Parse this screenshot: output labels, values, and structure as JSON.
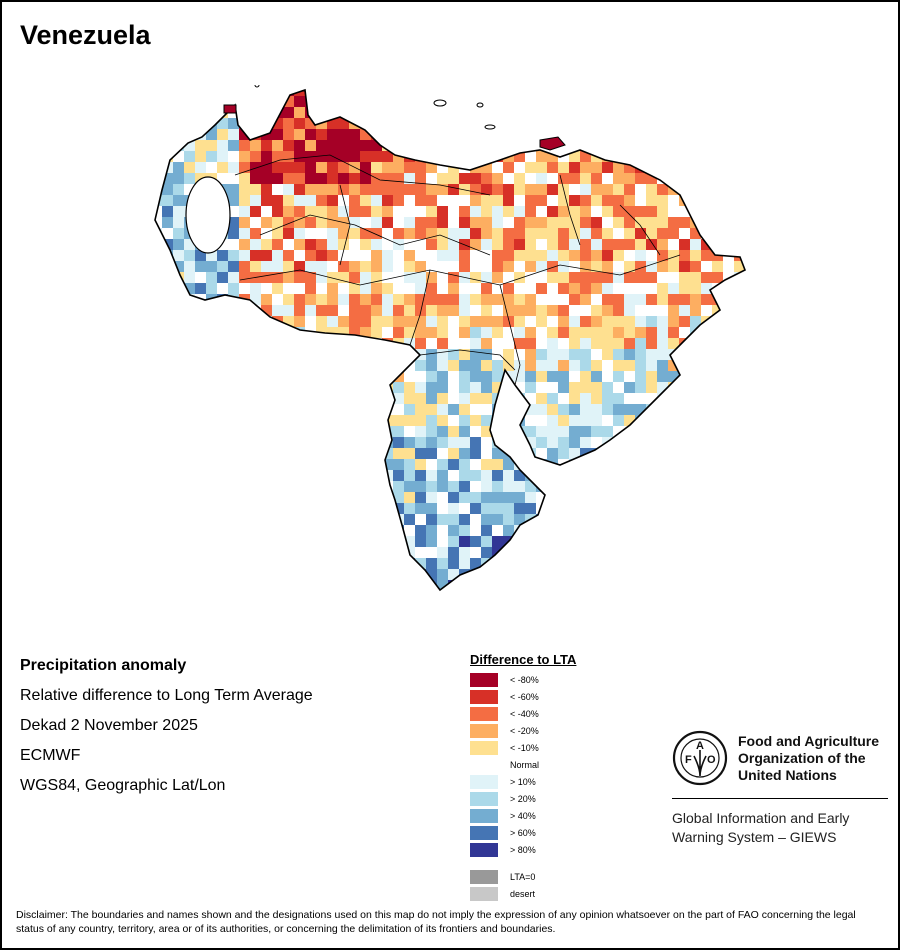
{
  "title": "Venezuela",
  "info": {
    "heading": "Precipitation anomaly",
    "subtitle": "Relative difference to Long Term Average",
    "period": "Dekad 2 November 2025",
    "source": "ECMWF",
    "projection": "WGS84, Geographic Lat/Lon"
  },
  "legend": {
    "title": "Difference to LTA",
    "items": [
      {
        "label": "< -80%",
        "color": "#a50026"
      },
      {
        "label": "< -60%",
        "color": "#d73027"
      },
      {
        "label": "< -40%",
        "color": "#f46d43"
      },
      {
        "label": "< -20%",
        "color": "#fdae61"
      },
      {
        "label": "< -10%",
        "color": "#fee090"
      },
      {
        "label": "Normal",
        "color": "#ffffff"
      },
      {
        "label": "> 10%",
        "color": "#e0f3f8"
      },
      {
        "label": "> 20%",
        "color": "#abd9e9"
      },
      {
        "label": "> 40%",
        "color": "#74add1"
      },
      {
        "label": "> 60%",
        "color": "#4575b4"
      },
      {
        "label": "> 80%",
        "color": "#313695"
      }
    ],
    "extra": [
      {
        "label": "LTA=0",
        "color": "#999999"
      },
      {
        "label": "desert",
        "color": "#c8c8c8"
      }
    ]
  },
  "logo": {
    "letters": [
      "F",
      "A",
      "O"
    ],
    "motto": "FIAT PANIS",
    "name_lines": [
      "Food and Agriculture",
      "Organization of the",
      "United Nations"
    ],
    "sub_lines": [
      "Global Information and Early",
      "Warning System – GIEWS"
    ]
  },
  "disclaimer": "Disclaimer: The boundaries and names shown and the designations used on this map do not imply the expression of any opinion whatsoever on the part of FAO concerning the legal status of any country, territory, area or of its authorities, or concerning the delimitation of its frontiers and boundaries.",
  "map_data": {
    "description": "Gridded precipitation anomaly over Venezuela; north-west and north-central mostly drier than average (reds/oranges), south and Amazonas mostly wetter (blues).",
    "regional_pattern": [
      {
        "region": "north-central coast",
        "class": "< -60%"
      },
      {
        "region": "north-west / Zulia",
        "class": "mixed, > 40%"
      },
      {
        "region": "llanos",
        "class": "< -20%"
      },
      {
        "region": "east / Monagas-Sucre",
        "class": "< -40%"
      },
      {
        "region": "Bolivar",
        "class": "mixed, > 20%"
      },
      {
        "region": "Amazonas",
        "class": "> 40%"
      }
    ]
  }
}
